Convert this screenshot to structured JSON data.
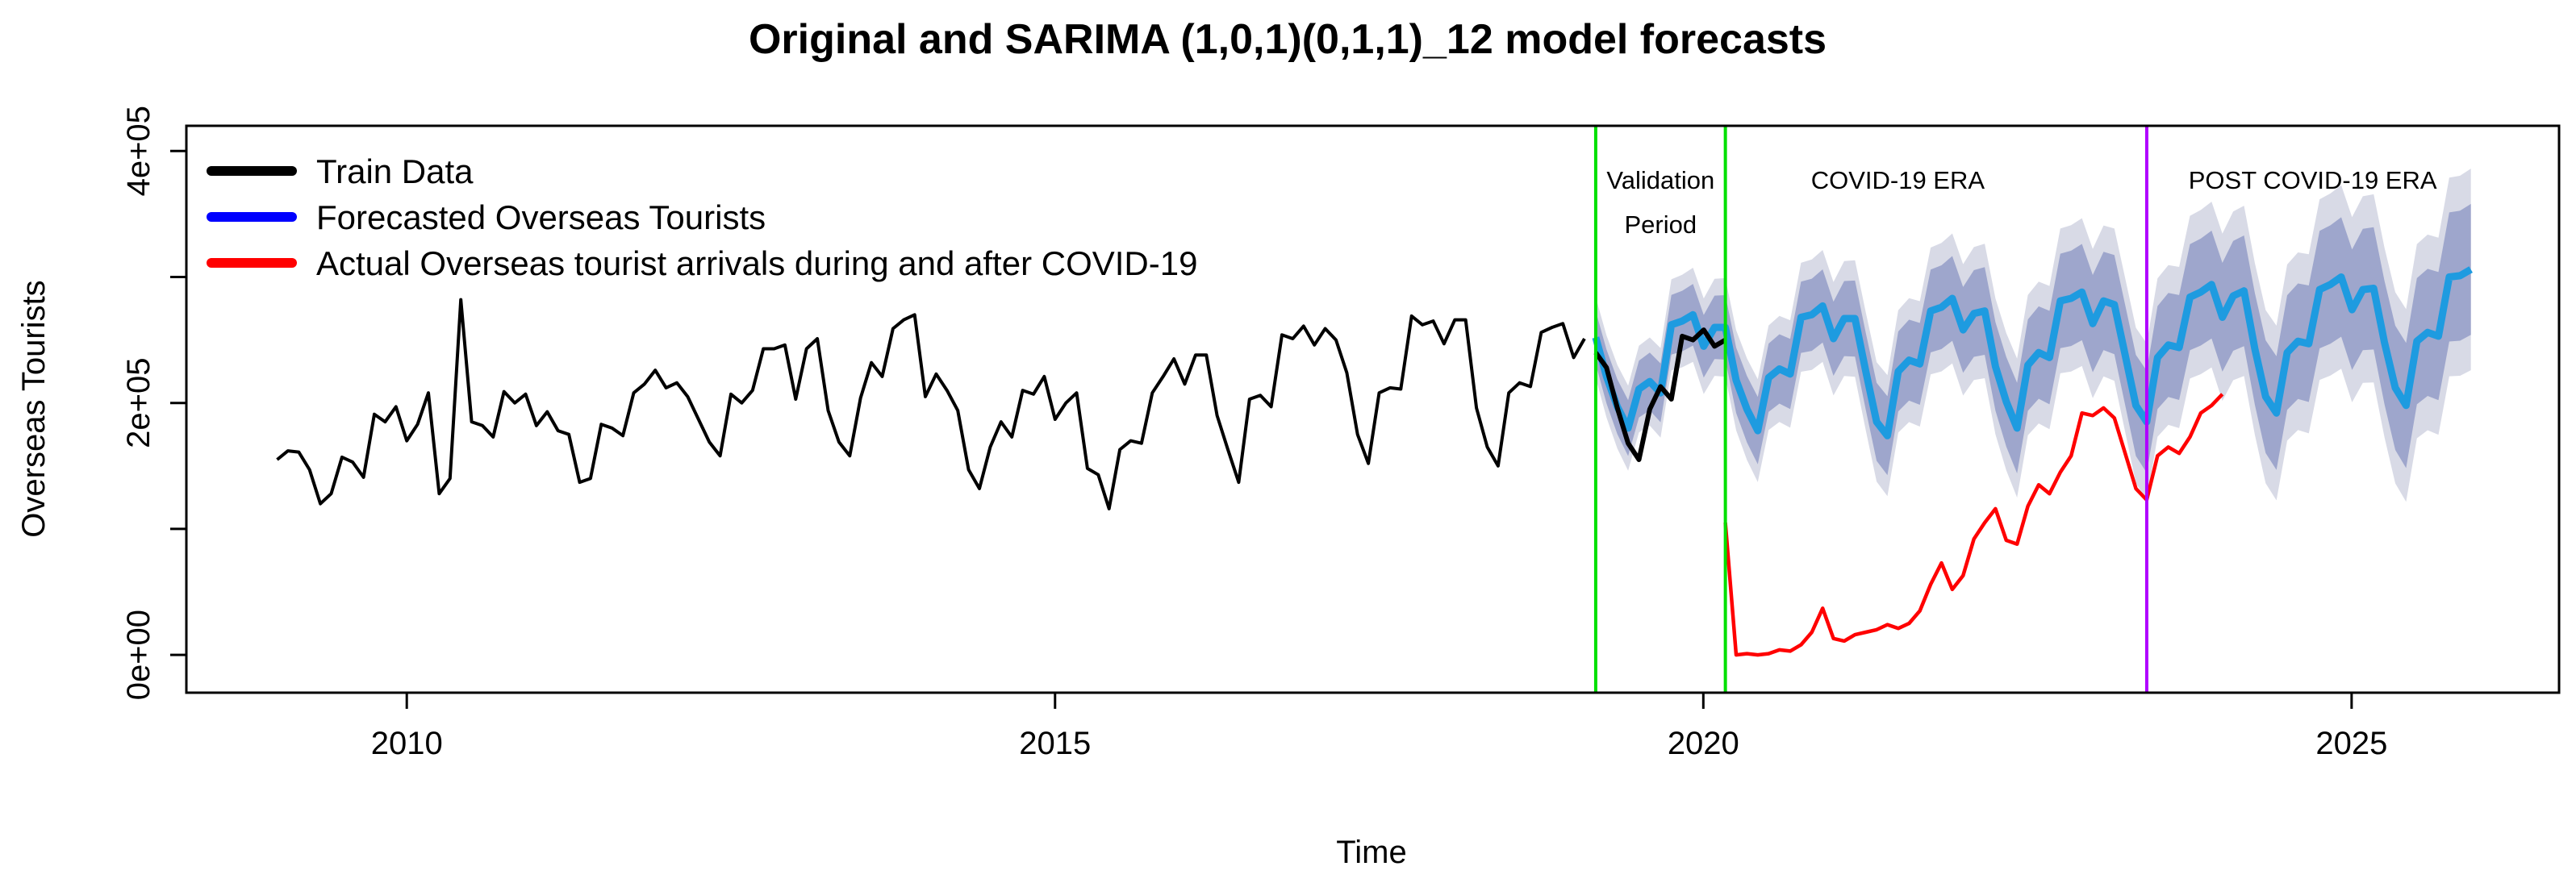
{
  "chart_data": {
    "type": "line",
    "title": "Original and SARIMA (1,0,1)(0,1,1)_12 model forecasts",
    "xlabel": "Time",
    "ylabel": "Overseas Tourists",
    "xlim": [
      2008.3,
      2026.6
    ],
    "ylim": [
      -30000,
      420000
    ],
    "x_ticks": [
      2010,
      2015,
      2020,
      2025
    ],
    "x_tick_labels": [
      "2010",
      "2015",
      "2020",
      "2025"
    ],
    "y_ticks": [
      0,
      200000,
      400000
    ],
    "y_tick_labels": [
      "0e+00",
      "2e+05",
      "4e+05"
    ],
    "y_minor_ticks": [
      100000,
      300000
    ],
    "legend": {
      "position": "top-left",
      "entries": [
        {
          "label": "Train Data",
          "color": "#000000"
        },
        {
          "label": "Forecasted Overseas Tourists",
          "color": "#0000ff"
        },
        {
          "label": "Actual Overseas tourist arrivals during and after COVID-19",
          "color": "#ff0000"
        }
      ]
    },
    "vertical_lines": [
      {
        "x": 2019.17,
        "color": "#00e000"
      },
      {
        "x": 2020.17,
        "color": "#00e000"
      },
      {
        "x": 2023.42,
        "color": "#b000ff"
      }
    ],
    "annotations": [
      {
        "text": "Validation",
        "x": 2019.67,
        "y": 370000
      },
      {
        "text": "Period",
        "x": 2019.67,
        "y": 335000
      },
      {
        "text": "COVID-19 ERA",
        "x": 2021.5,
        "y": 370000
      },
      {
        "text": "POST COVID-19 ERA",
        "x": 2024.7,
        "y": 370000
      }
    ],
    "colors": {
      "train": "#000000",
      "validation": "#000000",
      "forecast": "#1e9be0",
      "actual": "#ff0000",
      "band80": "#9ea6cc",
      "band95": "#d8dae6"
    },
    "series": [
      {
        "name": "Train Data",
        "start": 2009.0,
        "step": 0.0833333,
        "values": [
          155000,
          162000,
          161000,
          147000,
          120000,
          128000,
          157000,
          153000,
          141000,
          191000,
          185000,
          197000,
          170000,
          183000,
          208000,
          128000,
          140000,
          282000,
          185000,
          182000,
          173000,
          209000,
          200000,
          207000,
          182000,
          193000,
          178000,
          175000,
          137000,
          140000,
          183000,
          180000,
          174000,
          208000,
          215000,
          226000,
          212000,
          216000,
          205000,
          187000,
          169000,
          158000,
          207000,
          200000,
          210000,
          243000,
          243000,
          246000,
          203000,
          243000,
          251000,
          194000,
          169000,
          158000,
          204000,
          232000,
          221000,
          259000,
          266000,
          270000,
          205000,
          223000,
          210000,
          194000,
          147000,
          132000,
          165000,
          185000,
          173000,
          210000,
          207000,
          221000,
          187000,
          200000,
          208000,
          148000,
          143000,
          116000,
          163000,
          170000,
          168000,
          208000,
          221000,
          235000,
          215000,
          238000,
          238000,
          190000,
          163000,
          137000,
          203000,
          206000,
          197000,
          254000,
          251000,
          261000,
          246000,
          259000,
          250000,
          224000,
          175000,
          152000,
          208000,
          212000,
          211000,
          269000,
          262000,
          265000,
          247000,
          266000,
          266000,
          196000,
          165000,
          150000,
          208000,
          216000,
          213000,
          256000,
          260000,
          263000,
          236000,
          251000
        ]
      },
      {
        "name": "Validation Actual",
        "start": 2019.17,
        "step": 0.0833333,
        "values": [
          240000,
          228000,
          196000,
          168000,
          155000,
          195000,
          213000,
          203000,
          253000,
          250000,
          258000,
          245000,
          250000
        ]
      },
      {
        "name": "Forecasted Overseas Tourists",
        "start": 2019.17,
        "step": 0.0833333,
        "values": [
          252000,
          221000,
          197000,
          180000,
          211000,
          217000,
          208000,
          262000,
          265000,
          270000,
          245000,
          260000,
          260000,
          218000,
          195000,
          178000,
          220000,
          227000,
          223000,
          268000,
          270000,
          277000,
          251000,
          267000,
          267000,
          225000,
          185000,
          174000,
          225000,
          234000,
          231000,
          273000,
          276000,
          283000,
          258000,
          271000,
          273000,
          229000,
          201000,
          180000,
          230000,
          240000,
          236000,
          281000,
          283000,
          288000,
          263000,
          281000,
          278000,
          238000,
          198000,
          185000,
          236000,
          246000,
          244000,
          284000,
          288000,
          294000,
          268000,
          285000,
          289000,
          243000,
          205000,
          192000,
          240000,
          249000,
          247000,
          290000,
          294000,
          300000,
          274000,
          290000,
          291000,
          248000,
          212000,
          198000,
          249000,
          256000,
          253000,
          300000,
          301000,
          306000
        ]
      },
      {
        "name": "Actual Overseas tourist arrivals during and after COVID-19",
        "start": 2020.17,
        "step": 0.0833333,
        "values": [
          105000,
          0,
          1000,
          0,
          1000,
          4000,
          3000,
          8000,
          18000,
          37000,
          13000,
          11000,
          16000,
          18000,
          20000,
          24000,
          21000,
          25000,
          35000,
          56000,
          73000,
          52000,
          63000,
          92000,
          105000,
          116000,
          91000,
          88000,
          118000,
          135000,
          128000,
          145000,
          158000,
          192000,
          190000,
          196000,
          188000,
          160000,
          132000,
          123000,
          158000,
          165000,
          160000,
          173000,
          192000,
          198000,
          207000
        ]
      }
    ],
    "band_offsets": {
      "inner80_start": 21000,
      "inner80_end": 52000,
      "outer95_start": 32000,
      "outer95_end": 80000
    }
  }
}
